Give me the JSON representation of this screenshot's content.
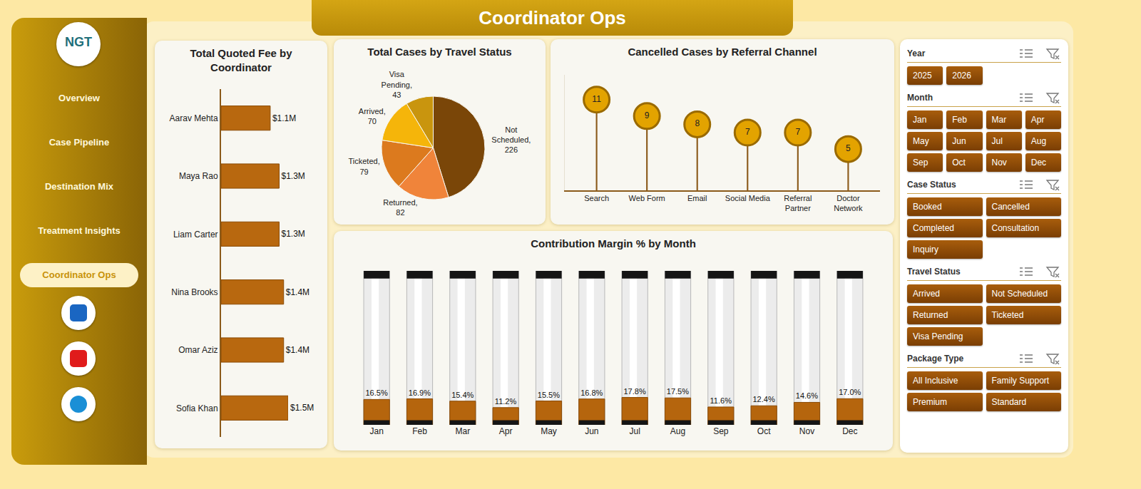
{
  "header": {
    "title": "Coordinator Ops"
  },
  "logo": {
    "text": "NGT"
  },
  "nav": {
    "items": [
      "Overview",
      "Case Pipeline",
      "Destination Mix",
      "Treatment Insights",
      "Coordinator Ops"
    ],
    "active": "Coordinator Ops"
  },
  "chart_data": [
    {
      "type": "bar",
      "title": "Total Quoted Fee by Coordinator",
      "orientation": "horizontal",
      "categories": [
        "Aarav Mehta",
        "Maya Rao",
        "Liam Carter",
        "Nina Brooks",
        "Omar Aziz",
        "Sofia Khan"
      ],
      "values": [
        1100000,
        1300000,
        1300000,
        1400000,
        1400000,
        1500000
      ],
      "value_labels": [
        "$1.1M",
        "$1.3M",
        "$1.3M",
        "$1.4M",
        "$1.4M",
        "$1.5M"
      ],
      "data_labels": true,
      "xlim": [
        0,
        1500000
      ],
      "tick_labels": "y",
      "color": "#b8680f"
    },
    {
      "type": "pie",
      "title": "Total Cases by Travel Status",
      "categories": [
        "Not Scheduled",
        "Returned",
        "Ticketed",
        "Arrived",
        "Visa Pending"
      ],
      "values": [
        226,
        82,
        79,
        70,
        43
      ],
      "value_labels": [
        "Not Scheduled, 226",
        "Returned, 82",
        "Ticketed, 79",
        "Arrived, 70",
        "Visa Pending, 43"
      ],
      "data_labels": true,
      "colors": [
        "#7a4608",
        "#f0843a",
        "#dc7a1e",
        "#f5b50a",
        "#c9950e"
      ]
    },
    {
      "type": "lollipop",
      "title": "Cancelled Cases by Referral Channel",
      "categories": [
        "Search",
        "Web Form",
        "Email",
        "Social Media",
        "Referral Partner",
        "Doctor Network"
      ],
      "values": [
        11,
        9,
        8,
        7,
        7,
        5
      ],
      "data_labels": true,
      "ylim": [
        0,
        14
      ],
      "tick_labels": "x",
      "color": "#e3a300",
      "marker": "circle"
    },
    {
      "type": "bar",
      "title": "Contribution Margin % by Month",
      "categories": [
        "Jan",
        "Feb",
        "Mar",
        "Apr",
        "May",
        "Jun",
        "Jul",
        "Aug",
        "Sep",
        "Oct",
        "Nov",
        "Dec"
      ],
      "values": [
        16.5,
        16.9,
        15.4,
        11.2,
        15.5,
        16.8,
        17.8,
        17.5,
        11.6,
        12.4,
        14.6,
        17.0
      ],
      "value_labels": [
        "16.5%",
        "16.9%",
        "15.4%",
        "11.2%",
        "15.5%",
        "16.8%",
        "17.8%",
        "17.5%",
        "11.6%",
        "12.4%",
        "14.6%",
        "17.0%"
      ],
      "data_labels": true,
      "ylim": [
        0,
        100
      ],
      "tick_labels": "x",
      "color": "#b5650d"
    }
  ],
  "slicers": [
    {
      "title": "Year",
      "items": [
        "2025",
        "2026"
      ]
    },
    {
      "title": "Month",
      "items": [
        "Jan",
        "Feb",
        "Mar",
        "Apr",
        "May",
        "Jun",
        "Jul",
        "Aug",
        "Sep",
        "Oct",
        "Nov",
        "Dec"
      ]
    },
    {
      "title": "Case Status",
      "items": [
        "Booked",
        "Cancelled",
        "Completed",
        "Consultation",
        "Inquiry"
      ]
    },
    {
      "title": "Travel Status",
      "items": [
        "Arrived",
        "Not Scheduled",
        "Returned",
        "Ticketed",
        "Visa Pending"
      ]
    },
    {
      "title": "Package Type",
      "items": [
        "All Inclusive",
        "Family Support",
        "Premium",
        "Standard"
      ]
    }
  ]
}
